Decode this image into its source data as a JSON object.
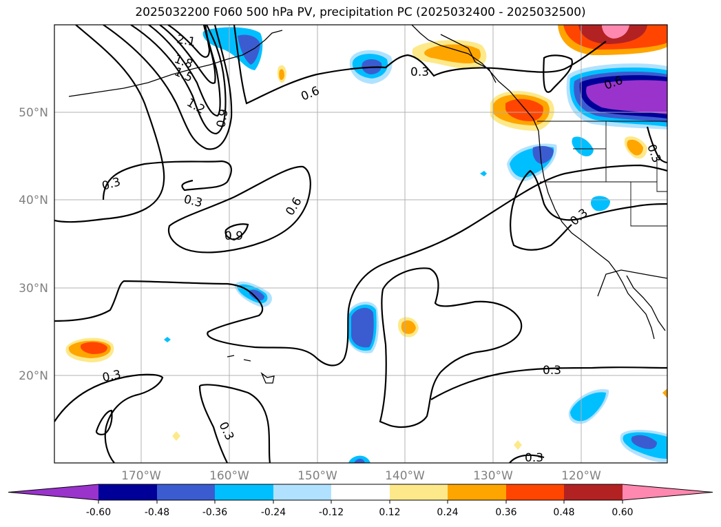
{
  "title": "2025032200 F060 500 hPa PV, precipitation PC (2025032400 - 2025032500)",
  "lat_labels": [
    "50°N",
    "40°N",
    "30°N",
    "20°N"
  ],
  "lon_labels": [
    "170°W",
    "160°W",
    "150°W",
    "140°W",
    "130°W",
    "120°W"
  ],
  "contour_labels": [
    "2.1",
    "1.8",
    "1.5",
    "1.2",
    "0.9",
    "0.6",
    "0.3",
    "0.3",
    "0.3",
    "0.9",
    "0.6",
    "0.3",
    "0.6",
    "0.3",
    "0.3",
    "0.3",
    "0.3",
    "0.3"
  ],
  "colorbar": {
    "ticks": [
      "-0.60",
      "-0.48",
      "-0.36",
      "-0.24",
      "-0.12",
      "0.12",
      "0.24",
      "0.36",
      "0.48",
      "0.60"
    ],
    "colors": [
      "#9933cc",
      "#000099",
      "#3b5cd1",
      "#00bfff",
      "#b0e2ff",
      "#ffffff",
      "#fde98a",
      "#ffa500",
      "#ff4500",
      "#b22222",
      "#ff88b0"
    ]
  }
}
